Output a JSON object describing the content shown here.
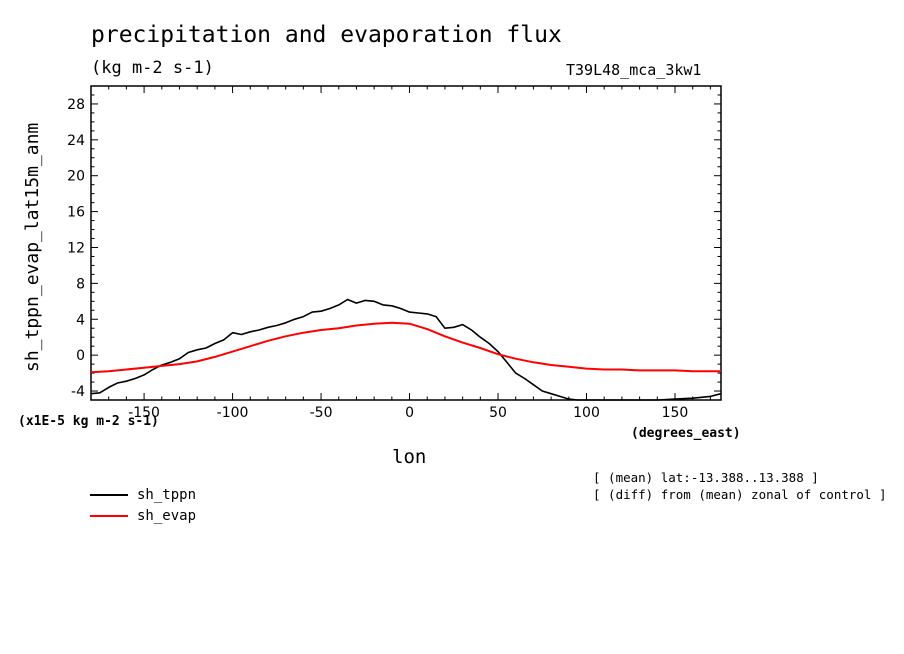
{
  "chart_data": {
    "type": "line",
    "title": "precipitation and evaporation flux",
    "subtitle": "(kg m-2 s-1)",
    "run_label": "T39L48_mca_3kw1",
    "xlabel": "lon",
    "ylabel": "sh_tppn_evap_lat15m_anm",
    "y_units": "(x1E-5 kg m-2 s-1)",
    "x_units": "(degrees_east)",
    "xlim": [
      -180,
      176
    ],
    "ylim": [
      -5,
      30
    ],
    "x_ticks": [
      -150,
      -100,
      -50,
      0,
      50,
      100,
      150
    ],
    "x_tick_labels": [
      "-150",
      "-100",
      "-50",
      "0",
      "50",
      "100",
      "150"
    ],
    "y_ticks": [
      -4,
      0,
      4,
      8,
      12,
      16,
      20,
      24,
      28
    ],
    "y_tick_labels": [
      "-4",
      "0",
      "4",
      "8",
      "12",
      "16",
      "20",
      "24",
      "28"
    ],
    "series": [
      {
        "name": "sh_tppn",
        "color": "#000000",
        "x": [
          -180,
          -175,
          -170,
          -165,
          -160,
          -155,
          -150,
          -145,
          -140,
          -135,
          -130,
          -125,
          -120,
          -115,
          -110,
          -105,
          -100,
          -95,
          -90,
          -85,
          -80,
          -75,
          -70,
          -65,
          -60,
          -55,
          -50,
          -45,
          -40,
          -35,
          -30,
          -25,
          -20,
          -15,
          -10,
          -5,
          0,
          5,
          10,
          15,
          20,
          25,
          30,
          35,
          40,
          45,
          50,
          55,
          60,
          65,
          70,
          75,
          80,
          85,
          90,
          95,
          100,
          110,
          120,
          130,
          140,
          150,
          160,
          165,
          170,
          176
        ],
        "y": [
          -4.3,
          -4.2,
          -3.6,
          -3.1,
          -2.9,
          -2.6,
          -2.2,
          -1.6,
          -1.1,
          -0.8,
          -0.4,
          0.3,
          0.6,
          0.8,
          1.3,
          1.7,
          2.5,
          2.3,
          2.6,
          2.8,
          3.1,
          3.3,
          3.6,
          4.0,
          4.3,
          4.8,
          4.9,
          5.2,
          5.6,
          6.2,
          5.8,
          6.1,
          6.0,
          5.6,
          5.5,
          5.2,
          4.8,
          4.7,
          4.6,
          4.3,
          3.0,
          3.1,
          3.4,
          2.8,
          2.0,
          1.3,
          0.4,
          -0.8,
          -2.0,
          -2.6,
          -3.3,
          -4.0,
          -4.3,
          -4.6,
          -4.9,
          -5.0,
          -5.0,
          -5.0,
          -5.0,
          -5.0,
          -5.0,
          -4.9,
          -4.8,
          -4.7,
          -4.6,
          -4.3
        ]
      },
      {
        "name": "sh_evap",
        "color": "#ff0000",
        "x": [
          -180,
          -170,
          -160,
          -150,
          -140,
          -130,
          -120,
          -110,
          -100,
          -90,
          -80,
          -70,
          -60,
          -50,
          -40,
          -30,
          -20,
          -10,
          0,
          10,
          20,
          30,
          40,
          50,
          60,
          70,
          80,
          90,
          100,
          110,
          120,
          130,
          140,
          150,
          160,
          170,
          176
        ],
        "y": [
          -1.9,
          -1.8,
          -1.6,
          -1.4,
          -1.2,
          -1.0,
          -0.7,
          -0.2,
          0.4,
          1.0,
          1.6,
          2.1,
          2.5,
          2.8,
          3.0,
          3.3,
          3.5,
          3.6,
          3.5,
          2.9,
          2.1,
          1.4,
          0.8,
          0.1,
          -0.4,
          -0.8,
          -1.1,
          -1.3,
          -1.5,
          -1.6,
          -1.6,
          -1.7,
          -1.7,
          -1.7,
          -1.8,
          -1.8,
          -1.8
        ]
      }
    ],
    "notes": [
      "[ (mean) lat:-13.388..13.388 ]",
      "[ (diff) from (mean) zonal of control ]"
    ]
  }
}
